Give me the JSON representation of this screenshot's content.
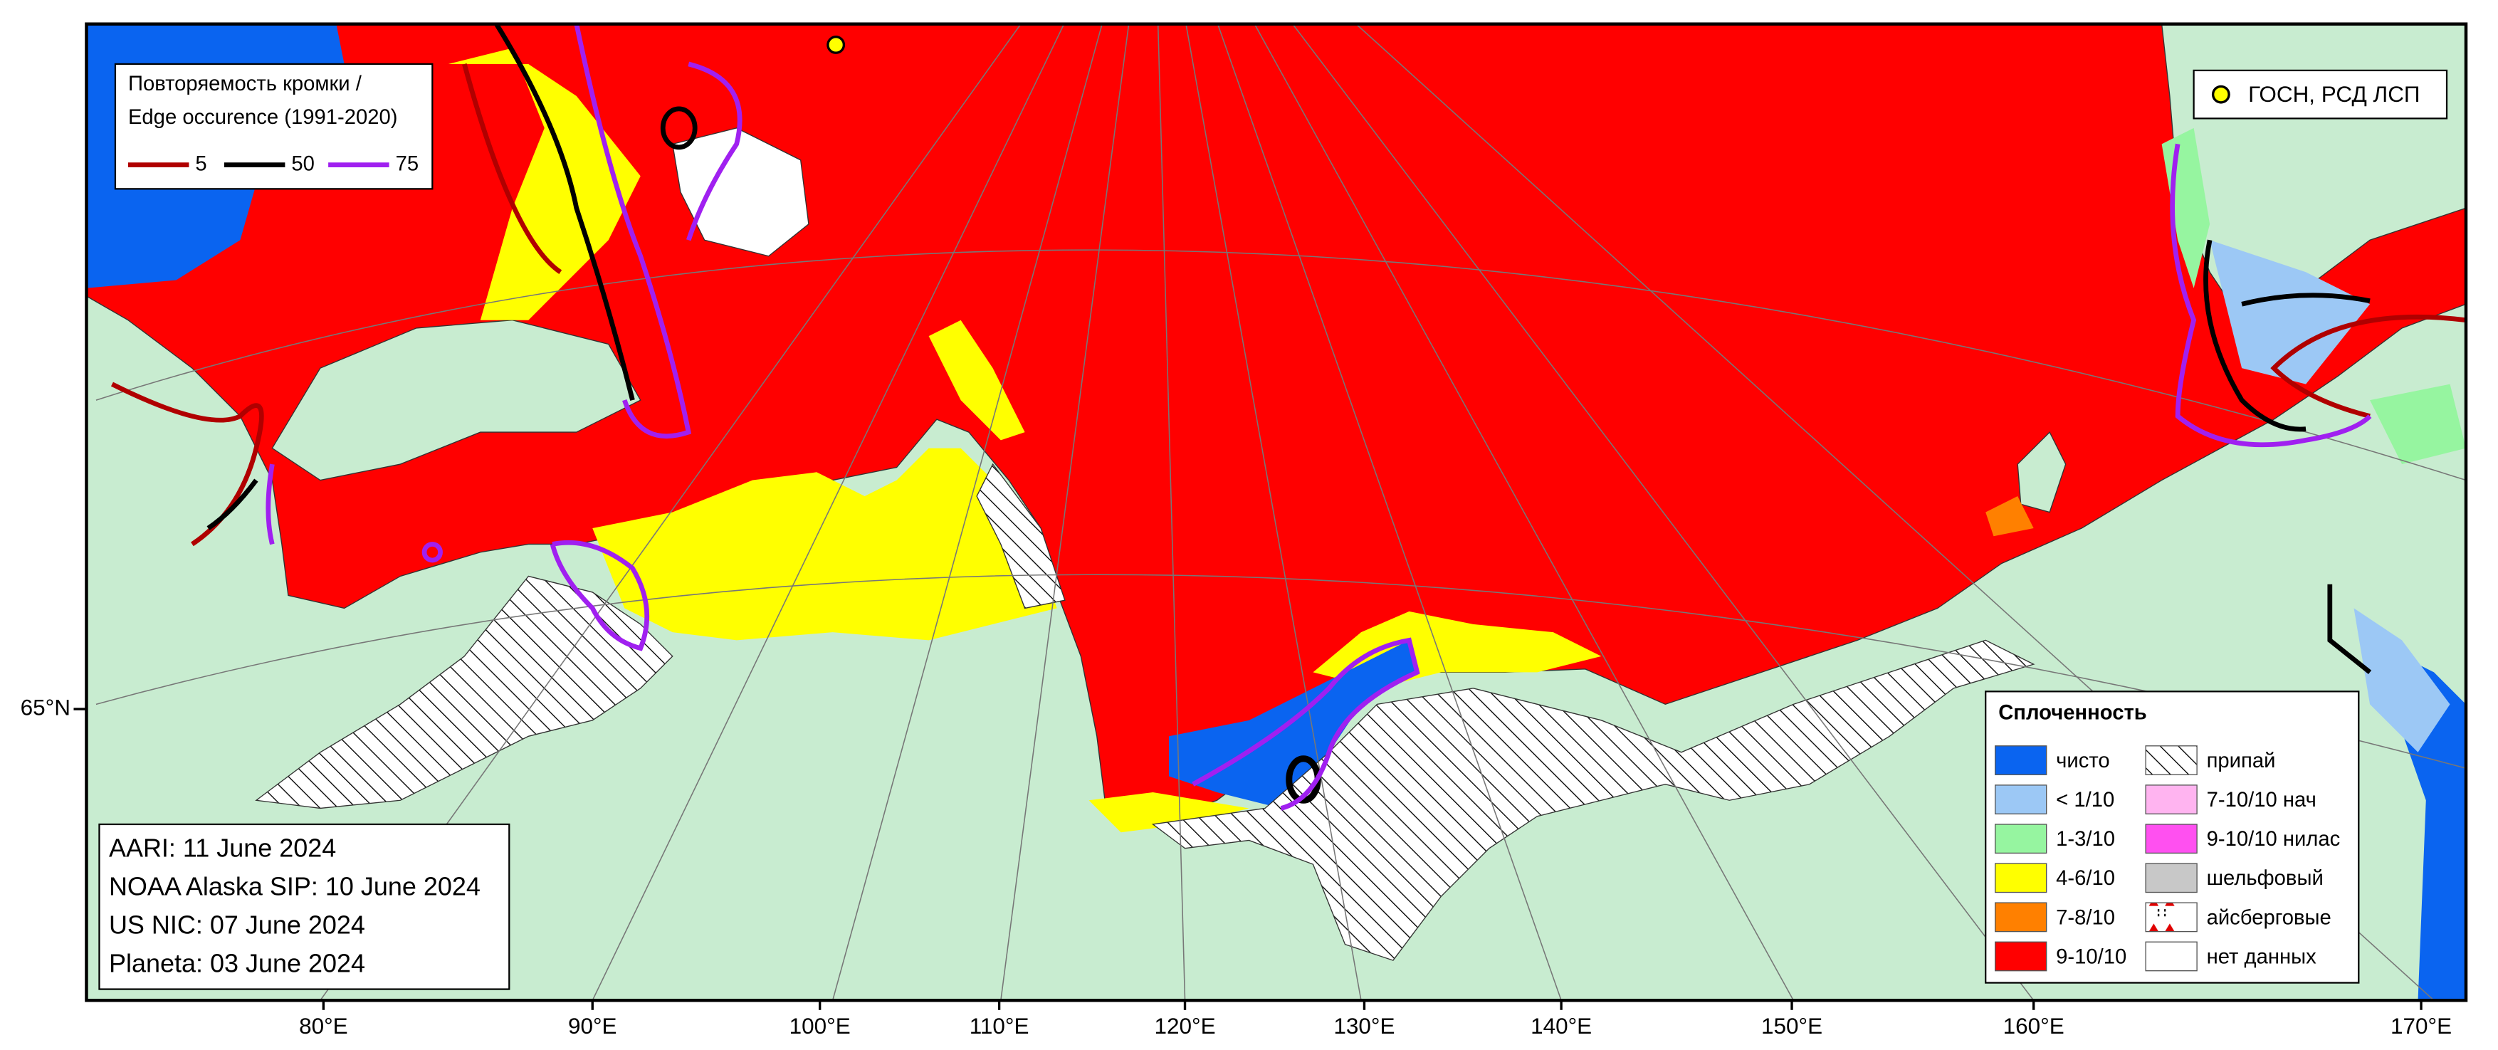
{
  "edge_legend": {
    "title_lines": [
      "Повторяемость кромки /",
      "Edge occurence (1991-2020)"
    ],
    "items": [
      {
        "label": "5",
        "color": "#b00000"
      },
      {
        "label": "50",
        "color": "#000000"
      },
      {
        "label": "75",
        "color": "#a020f0"
      }
    ]
  },
  "station_legend": {
    "label": "ГОСН, РСД ЛСП",
    "color": "#ffff00"
  },
  "sources": [
    "AARI: 11 June 2024",
    "NOAA Alaska SIP: 10 June 2024",
    "US NIC: 07 June 2024",
    "Planeta: 03 June 2024"
  ],
  "concentration_legend": {
    "title": "Сплоченность",
    "columns": [
      [
        {
          "label": "чисто",
          "fill": "#0a64f0"
        },
        {
          "label": "< 1/10",
          "fill": "#9cc8f5"
        },
        {
          "label": "1-3/10",
          "fill": "#96f5a0"
        },
        {
          "label": "4-6/10",
          "fill": "#ffff00"
        },
        {
          "label": "7-8/10",
          "fill": "#ff8000"
        },
        {
          "label": "9-10/10",
          "fill": "#ff0000"
        }
      ],
      [
        {
          "label": "припай",
          "fill": "url(#hatch)"
        },
        {
          "label": "7-10/10 нач",
          "fill": "#ffb4f0"
        },
        {
          "label": "9-10/10 нилас",
          "fill": "#ff50f0"
        },
        {
          "label": "шельфовый",
          "fill": "#c8c8c8"
        },
        {
          "label": "айсберговые",
          "fill": "url(#berg)"
        },
        {
          "label": "нет данных",
          "fill": "#ffffff"
        }
      ]
    ]
  },
  "longitude_labels": [
    "80°E",
    "90°E",
    "100°E",
    "110°E",
    "120°E",
    "130°E",
    "140°E",
    "150°E",
    "160°E",
    "170°E"
  ],
  "latitude_labels": [
    "65°N"
  ]
}
